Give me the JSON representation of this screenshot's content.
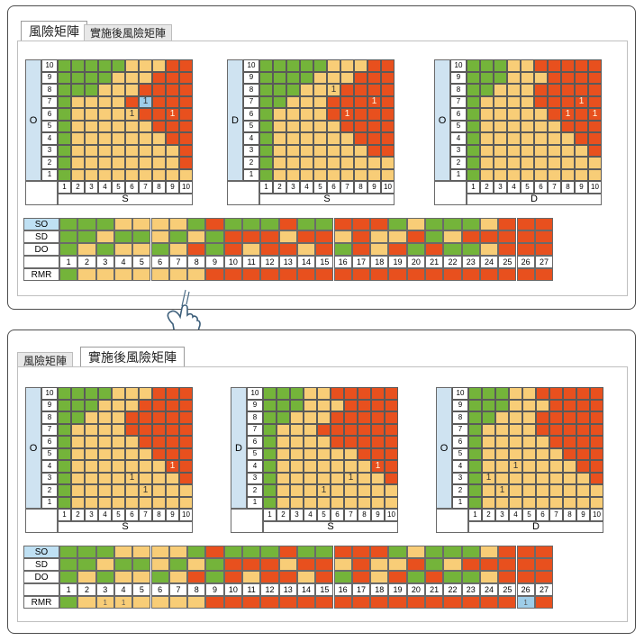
{
  "colors": {
    "red": "#e8501e",
    "yellow": "#f8cd77",
    "green": "#74b43a",
    "blue": "#9ecde8",
    "white": "#ffffff"
  },
  "panels": [
    {
      "tabs": [
        {
          "label": "風險矩陣",
          "active": true
        },
        {
          "label": "實施後風險矩陣",
          "active": false
        }
      ],
      "matrices": [
        {
          "y_axis": "O",
          "x_axis": "S",
          "thresholds": [
            [
              1,
              10
            ],
            [
              1,
              8
            ],
            [
              1,
              8
            ],
            [
              1,
              7
            ],
            [
              1,
              6
            ],
            [
              1,
              5
            ],
            [
              1,
              4
            ],
            [
              3,
              3
            ],
            [
              4,
              3
            ],
            [
              5,
              3
            ]
          ],
          "marks": [
            {
              "x": 7,
              "y": 7,
              "text": "1",
              "highlight": true
            },
            {
              "x": 6,
              "y": 6,
              "text": "1"
            },
            {
              "x": 9,
              "y": 6,
              "text": "1"
            }
          ]
        },
        {
          "y_axis": "D",
          "x_axis": "S",
          "thresholds": [
            [
              1,
              9
            ],
            [
              1,
              9
            ],
            [
              1,
              7
            ],
            [
              1,
              6
            ],
            [
              1,
              5
            ],
            [
              1,
              4
            ],
            [
              2,
              3
            ],
            [
              3,
              3
            ],
            [
              4,
              3
            ],
            [
              5,
              3
            ]
          ],
          "marks": [
            {
              "x": 6,
              "y": 8,
              "text": "1"
            },
            {
              "x": 9,
              "y": 7,
              "text": "1"
            },
            {
              "x": 7,
              "y": 6,
              "text": "1"
            }
          ]
        },
        {
          "y_axis": "O",
          "x_axis": "D",
          "thresholds": [
            [
              1,
              10
            ],
            [
              1,
              9
            ],
            [
              1,
              8
            ],
            [
              1,
              7
            ],
            [
              1,
              6
            ],
            [
              1,
              5
            ],
            [
              1,
              4
            ],
            [
              2,
              3
            ],
            [
              3,
              3
            ],
            [
              3,
              2
            ]
          ],
          "marks": [
            {
              "x": 9,
              "y": 7,
              "text": "1"
            },
            {
              "x": 8,
              "y": 6,
              "text": "1"
            },
            {
              "x": 10,
              "y": 6,
              "text": "1"
            }
          ]
        }
      ],
      "table": {
        "rows": [
          "SO",
          "SD",
          "DO"
        ],
        "columns": [
          "1",
          "2",
          "3",
          "4",
          "5",
          "6",
          "7",
          "8",
          "9",
          "10",
          "11",
          "12",
          "13",
          "14",
          "15",
          "16",
          "17",
          "18",
          "19",
          "20",
          "21",
          "22",
          "23",
          "24",
          "25",
          "26",
          "27"
        ],
        "rmr_label": "RMR",
        "grid": [
          "GGGYYYYGRGGGRGGRRRGYGGGYRRR",
          "GGYGGYGYGRRRYRRYRYYRGYRRRRR",
          "GYGYYGYRGRYRRYRGRYRGRGGYRRR"
        ],
        "rmr": "GYYYYYYYRRRRRRRRRRRRRRRRRRR",
        "rmr_marks": []
      }
    },
    {
      "tabs": [
        {
          "label": "風險矩陣",
          "active": false
        },
        {
          "label": "實施後風險矩陣",
          "active": true
        }
      ],
      "matrices": [
        {
          "y_axis": "O",
          "x_axis": "S",
          "thresholds": [
            [
              1,
              10
            ],
            [
              1,
              9
            ],
            [
              1,
              8
            ],
            [
              1,
              7
            ],
            [
              1,
              6
            ],
            [
              1,
              5
            ],
            [
              1,
              4
            ],
            [
              2,
              3
            ],
            [
              3,
              3
            ],
            [
              4,
              3
            ]
          ],
          "marks": [
            {
              "x": 9,
              "y": 4,
              "text": "1"
            },
            {
              "x": 6,
              "y": 3,
              "text": "1"
            },
            {
              "x": 7,
              "y": 2,
              "text": "1"
            }
          ]
        },
        {
          "y_axis": "D",
          "x_axis": "S",
          "thresholds": [
            [
              1,
              9
            ],
            [
              1,
              9
            ],
            [
              1,
              8
            ],
            [
              1,
              7
            ],
            [
              1,
              6
            ],
            [
              1,
              4
            ],
            [
              1,
              3
            ],
            [
              2,
              3
            ],
            [
              3,
              3
            ],
            [
              3,
              2
            ]
          ],
          "marks": [
            {
              "x": 9,
              "y": 4,
              "text": "1"
            },
            {
              "x": 7,
              "y": 3,
              "text": "1"
            },
            {
              "x": 5,
              "y": 2,
              "text": "1"
            }
          ]
        },
        {
          "y_axis": "O",
          "x_axis": "D",
          "thresholds": [
            [
              1,
              10
            ],
            [
              1,
              9
            ],
            [
              1,
              8
            ],
            [
              1,
              7
            ],
            [
              1,
              6
            ],
            [
              1,
              5
            ],
            [
              1,
              4
            ],
            [
              2,
              3
            ],
            [
              3,
              3
            ],
            [
              3,
              2
            ]
          ],
          "marks": [
            {
              "x": 4,
              "y": 4,
              "text": "1"
            },
            {
              "x": 2,
              "y": 3,
              "text": "1"
            },
            {
              "x": 3,
              "y": 2,
              "text": "1"
            }
          ]
        }
      ],
      "table": {
        "rows": [
          "SO",
          "SD",
          "DO"
        ],
        "columns": [
          "1",
          "2",
          "3",
          "4",
          "5",
          "6",
          "7",
          "8",
          "9",
          "10",
          "11",
          "12",
          "13",
          "14",
          "15",
          "16",
          "17",
          "18",
          "19",
          "20",
          "21",
          "22",
          "23",
          "24",
          "25",
          "26",
          "27"
        ],
        "rmr_label": "RMR",
        "grid": [
          "GGGYYYYGRGGGRGGRRRGYGGGYRRR",
          "GGYGGYGYGRRRYRRYRYYRGYRRRRR",
          "GYGYYGYRGRYRRYRGRYRGRGGYRRR"
        ],
        "rmr": "GYYYYYYYRRRRRRRRRRRRRRRRRYR",
        "rmr_marks": [
          {
            "col": 3,
            "text": "1"
          },
          {
            "col": 4,
            "text": "1"
          },
          {
            "col": 26,
            "text": "1",
            "highlight": true
          }
        ]
      }
    }
  ],
  "hand_icon": "pointing-hand-icon"
}
